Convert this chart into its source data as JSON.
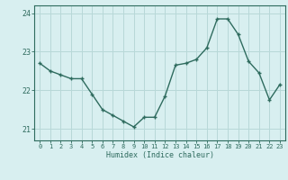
{
  "x": [
    0,
    1,
    2,
    3,
    4,
    5,
    6,
    7,
    8,
    9,
    10,
    11,
    12,
    13,
    14,
    15,
    16,
    17,
    18,
    19,
    20,
    21,
    22,
    23
  ],
  "y": [
    22.7,
    22.5,
    22.4,
    22.3,
    22.3,
    21.9,
    21.5,
    21.35,
    21.2,
    21.05,
    21.3,
    21.3,
    21.85,
    22.65,
    22.7,
    22.8,
    23.1,
    23.85,
    23.85,
    23.45,
    22.75,
    22.45,
    21.75,
    22.15
  ],
  "line_color": "#2e6b5e",
  "bg_color": "#d8eff0",
  "grid_color": "#b8d8d8",
  "xlabel": "Humidex (Indice chaleur)",
  "ylim": [
    20.7,
    24.2
  ],
  "xlim": [
    -0.5,
    23.5
  ],
  "yticks": [
    21,
    22,
    23,
    24
  ],
  "xticks": [
    0,
    1,
    2,
    3,
    4,
    5,
    6,
    7,
    8,
    9,
    10,
    11,
    12,
    13,
    14,
    15,
    16,
    17,
    18,
    19,
    20,
    21,
    22,
    23
  ],
  "font_color": "#2e6b5e"
}
